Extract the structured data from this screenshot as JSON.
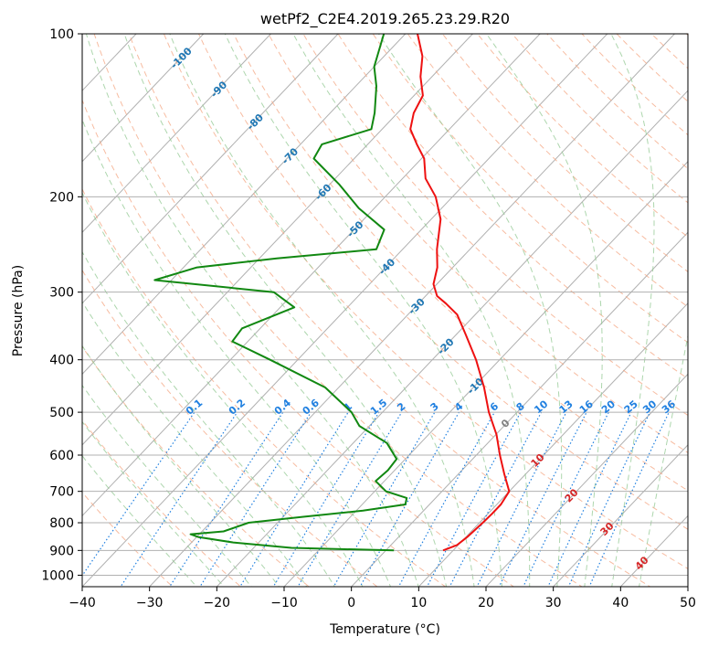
{
  "chart_data": {
    "type": "line",
    "subtype": "skew-t log-p",
    "title": "wetPf2_C2E4.2019.265.23.29.R20",
    "xlabel": "Temperature (°C)",
    "ylabel": "Pressure (hPa)",
    "xlim": [
      -40,
      50
    ],
    "ylim": [
      1050,
      100
    ],
    "yscale": "log",
    "x_ticks": [
      -40,
      -30,
      -20,
      -10,
      0,
      10,
      20,
      30,
      40,
      50
    ],
    "x_tick_labels": [
      "−40",
      "−30",
      "−20",
      "−10",
      "0",
      "10",
      "20",
      "30",
      "40",
      "50"
    ],
    "y_ticks": [
      100,
      200,
      300,
      400,
      500,
      600,
      700,
      800,
      900,
      1000
    ],
    "y_tick_labels": [
      "100",
      "200",
      "300",
      "400",
      "500",
      "600",
      "700",
      "800",
      "900",
      "1000"
    ],
    "grid": true,
    "colors": {
      "temperature": "#ee1111",
      "dewpoint": "#118811",
      "grid": "#b0b0b0",
      "dry_adiabat": "#f4a582",
      "moist_adiabat": "#92c892",
      "mixing_ratio": "#2080e0",
      "annotation_blue": "#1f77b4",
      "annotation_red": "#d62728",
      "annotation_gray": "#808080"
    },
    "series": [
      {
        "key": "temperature",
        "points": [
          {
            "p": 900,
            "t": 8.5
          },
          {
            "p": 880,
            "t": 9.8
          },
          {
            "p": 850,
            "t": 10.2
          },
          {
            "p": 800,
            "t": 10.5
          },
          {
            "p": 770,
            "t": 10.6
          },
          {
            "p": 740,
            "t": 10.6
          },
          {
            "p": 700,
            "t": 10.0
          },
          {
            "p": 650,
            "t": 6.8
          },
          {
            "p": 600,
            "t": 3.5
          },
          {
            "p": 550,
            "t": 0.1
          },
          {
            "p": 500,
            "t": -4.2
          },
          {
            "p": 450,
            "t": -8.4
          },
          {
            "p": 400,
            "t": -13.5
          },
          {
            "p": 360,
            "t": -18.5
          },
          {
            "p": 330,
            "t": -22.7
          },
          {
            "p": 315,
            "t": -25.9
          },
          {
            "p": 305,
            "t": -28.3
          },
          {
            "p": 290,
            "t": -30.5
          },
          {
            "p": 270,
            "t": -32.3
          },
          {
            "p": 250,
            "t": -34.9
          },
          {
            "p": 220,
            "t": -38.6
          },
          {
            "p": 200,
            "t": -42.5
          },
          {
            "p": 185,
            "t": -46.6
          },
          {
            "p": 170,
            "t": -49.6
          },
          {
            "p": 160,
            "t": -52.7
          },
          {
            "p": 150,
            "t": -55.8
          },
          {
            "p": 140,
            "t": -57.6
          },
          {
            "p": 130,
            "t": -58.7
          },
          {
            "p": 120,
            "t": -61.7
          },
          {
            "p": 110,
            "t": -64.3
          },
          {
            "p": 100,
            "t": -68.2
          }
        ]
      },
      {
        "key": "dewpoint",
        "points": [
          {
            "p": 900,
            "t": 1.2
          },
          {
            "p": 890,
            "t": -14.4
          },
          {
            "p": 870,
            "t": -23.8
          },
          {
            "p": 850,
            "t": -29.8
          },
          {
            "p": 840,
            "t": -31.3
          },
          {
            "p": 830,
            "t": -26.8
          },
          {
            "p": 800,
            "t": -24.3
          },
          {
            "p": 780,
            "t": -17.0
          },
          {
            "p": 760,
            "t": -9.0
          },
          {
            "p": 740,
            "t": -3.6
          },
          {
            "p": 720,
            "t": -4.3
          },
          {
            "p": 700,
            "t": -8.3
          },
          {
            "p": 670,
            "t": -11.3
          },
          {
            "p": 640,
            "t": -11.0
          },
          {
            "p": 610,
            "t": -11.3
          },
          {
            "p": 570,
            "t": -15.0
          },
          {
            "p": 530,
            "t": -21.5
          },
          {
            "p": 500,
            "t": -24.6
          },
          {
            "p": 450,
            "t": -32.0
          },
          {
            "p": 400,
            "t": -44.1
          },
          {
            "p": 370,
            "t": -52.3
          },
          {
            "p": 350,
            "t": -52.7
          },
          {
            "p": 320,
            "t": -47.9
          },
          {
            "p": 300,
            "t": -53.1
          },
          {
            "p": 285,
            "t": -72.5
          },
          {
            "p": 270,
            "t": -68.0
          },
          {
            "p": 260,
            "t": -57.4
          },
          {
            "p": 250,
            "t": -43.9
          },
          {
            "p": 230,
            "t": -45.5
          },
          {
            "p": 210,
            "t": -52.3
          },
          {
            "p": 190,
            "t": -58.5
          },
          {
            "p": 170,
            "t": -66.0
          },
          {
            "p": 160,
            "t": -66.8
          },
          {
            "p": 150,
            "t": -61.6
          },
          {
            "p": 140,
            "t": -63.4
          },
          {
            "p": 125,
            "t": -66.9
          },
          {
            "p": 115,
            "t": -70.0
          },
          {
            "p": 100,
            "t": -73.2
          }
        ]
      }
    ],
    "mixing_ratio_labels": [
      "0.1",
      "0.2",
      "0.4",
      "0.6",
      "1",
      "1.5",
      "2",
      "3",
      "4",
      "6",
      "8",
      "10",
      "13",
      "16",
      "20",
      "25",
      "30",
      "36"
    ],
    "skew_labels_blue": [
      "-100",
      "-90",
      "-80",
      "-70",
      "-60",
      "-50",
      "-40",
      "-30",
      "-20",
      "-10"
    ],
    "skew_labels_red": [
      "10",
      "20",
      "30",
      "40"
    ],
    "skew_label_gray": "0"
  }
}
